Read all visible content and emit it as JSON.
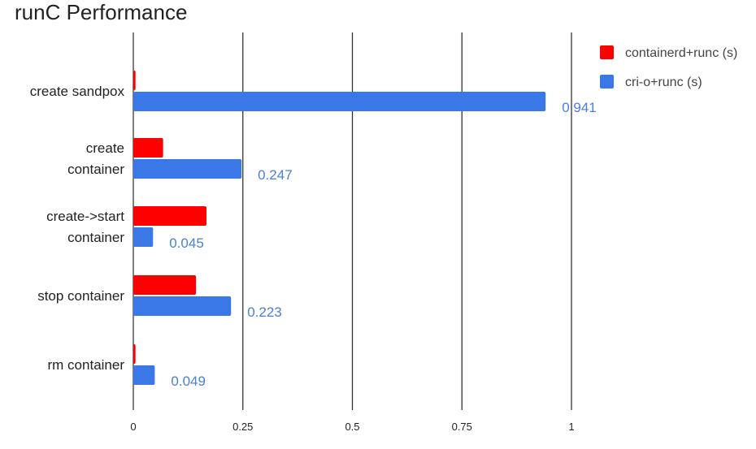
{
  "chart_data": {
    "type": "bar",
    "orientation": "horizontal",
    "title": "runC Performance",
    "categories": [
      [
        "create sandpox"
      ],
      [
        "create",
        "container"
      ],
      [
        "create->start",
        "container"
      ],
      [
        "stop container"
      ],
      [
        "rm container"
      ]
    ],
    "series": [
      {
        "name": "containerd+runc (s)",
        "color": "#ff0000",
        "values": [
          0.005,
          0.068,
          0.167,
          0.143,
          0.005
        ],
        "labels": [
          "",
          "",
          "",
          "",
          ""
        ]
      },
      {
        "name": "cri-o+runc (s)",
        "color": "#3b78e7",
        "values": [
          0.941,
          0.247,
          0.045,
          0.223,
          0.049
        ],
        "labels": [
          "0.941",
          "0.247",
          "0.045",
          "0.223",
          "0.049"
        ]
      }
    ],
    "xlim": [
      0,
      1
    ],
    "xticks": [
      "0",
      "0.25",
      "0.5",
      "0.75",
      "1"
    ],
    "xtick_values": [
      0,
      0.25,
      0.5,
      0.75,
      1
    ],
    "grid": "vertical",
    "legend_position": "top-right"
  }
}
